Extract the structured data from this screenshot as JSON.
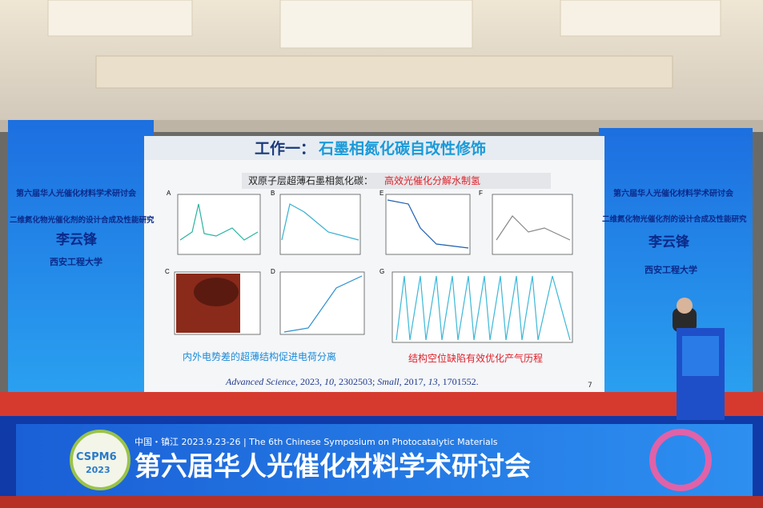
{
  "slide": {
    "title_prefix": "工作一：",
    "title": "石墨相氮化碳自改性修饰",
    "subtitle": "双原子层超薄石墨相氮化碳：",
    "subtitle_highlight": "高效光催化分解水制氢",
    "panels": [
      "A",
      "B",
      "C",
      "D",
      "E",
      "F",
      "G"
    ],
    "caption_left": "内外电势差的超薄结构促进电荷分离",
    "caption_right": "结构空位缺陷有效优化产气历程",
    "citation": [
      "Advanced Science",
      ", 2023, ",
      "10",
      ", 2302503; ",
      "Small",
      ", 2017, ",
      "13",
      ", 1701552."
    ],
    "page": "7"
  },
  "side_screen": {
    "conference": "第六届华人光催化材料学术研讨会",
    "talk": "二维氮化物光催化剂的设计合成及性能研究",
    "speaker": "李云锋",
    "affiliation": "西安工程大学"
  },
  "banner": {
    "info": "中国・镇江  2023.9.23-26 | The 6th Chinese Symposium on Photocatalytic Materials",
    "title": "第六届华人光催化材料学术研讨会",
    "logo_name": "CSPM6",
    "logo_year": "2023"
  }
}
